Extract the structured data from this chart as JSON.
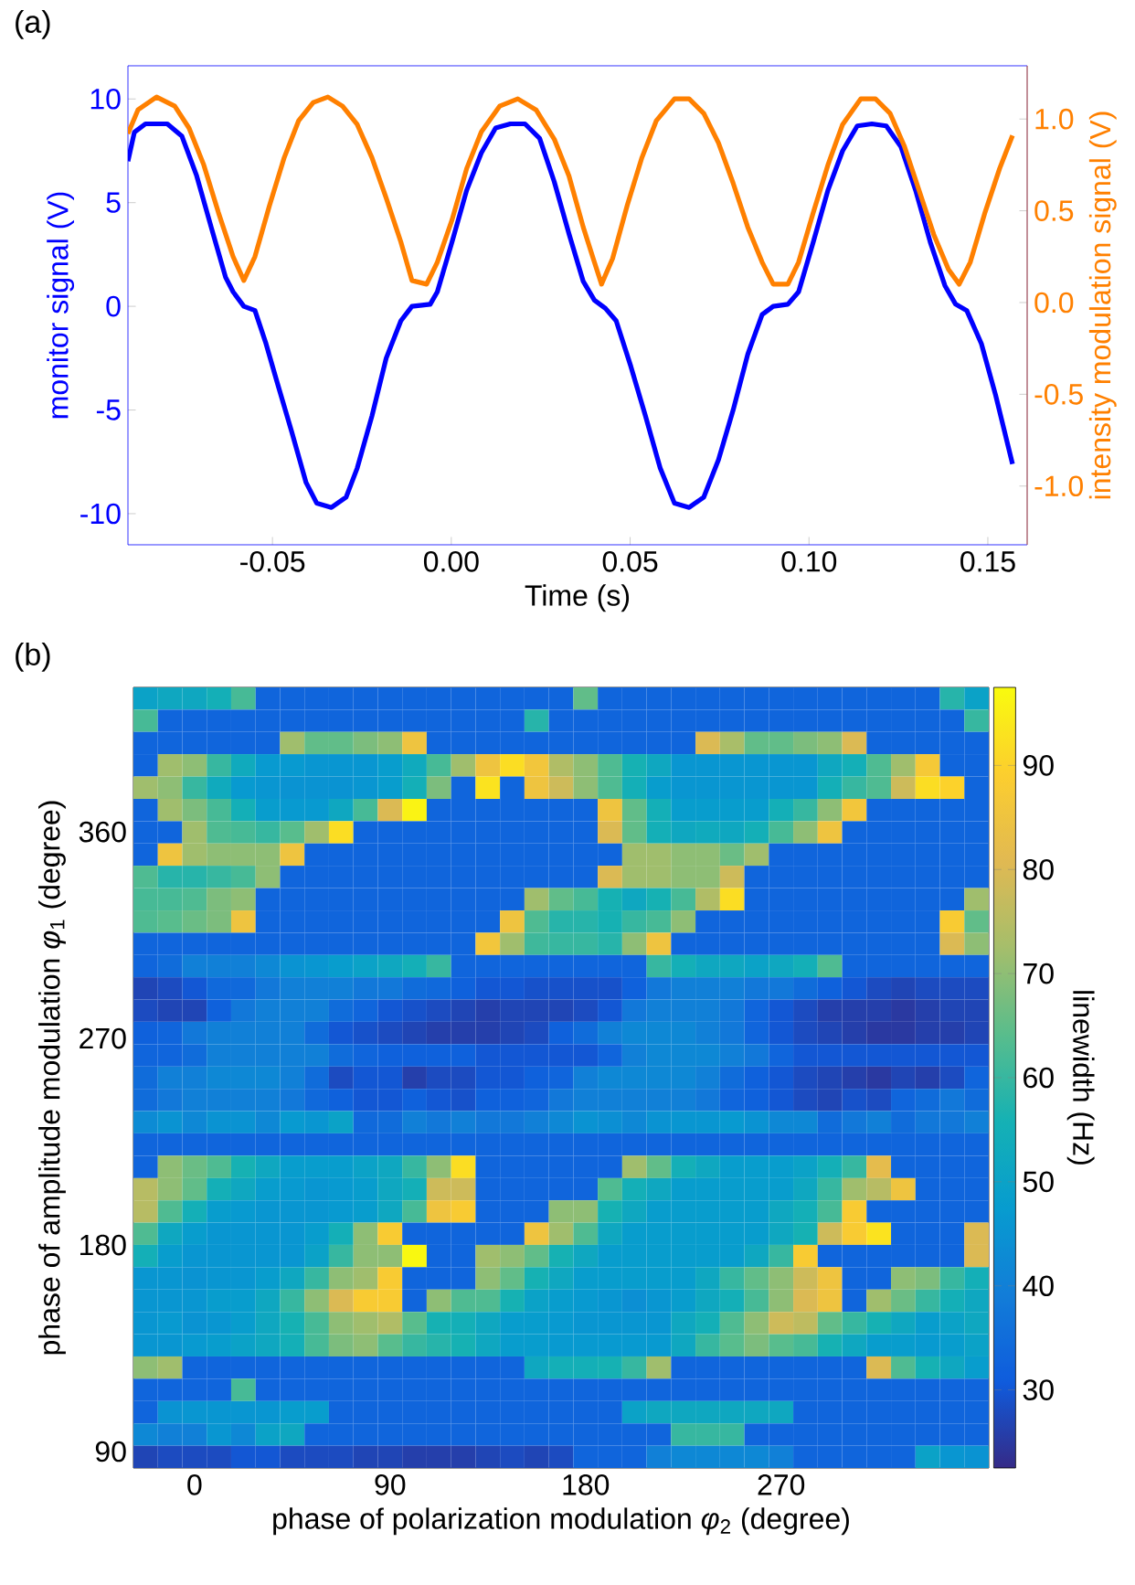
{
  "chart_data": [
    {
      "type": "line",
      "xlabel": "Time (s)",
      "ylabel": "monitor signal (V)",
      "y2label": "intensity modulation signal (V)",
      "annotations": [
        "(a)"
      ],
      "line_style": "solid",
      "xlim": [
        -0.0904,
        0.161
      ],
      "xticks": [
        -0.05,
        {
          "value": 0,
          "label": "0.00"
        },
        0.05,
        {
          "value": 0.1,
          "label": "0.10"
        },
        0.15
      ],
      "ylim": [
        -11.5,
        11.6
      ],
      "yticks": [
        -10,
        -5,
        0,
        5,
        10
      ],
      "y2lim": [
        -1.32,
        1.29
      ],
      "y2ticks": [
        {
          "value": -1,
          "label": "-1.0"
        },
        {
          "value": -0.5,
          "label": "-0.5"
        },
        {
          "value": 0,
          "label": "0.0"
        },
        {
          "value": 0.5,
          "label": "0.5"
        },
        {
          "value": 1,
          "label": "1.0"
        }
      ],
      "series": [
        {
          "color": "#0000ff",
          "x": [
            -0.0904,
            -0.0886,
            -0.0855,
            -0.0794,
            -0.0753,
            -0.0712,
            -0.0671,
            -0.0631,
            -0.061,
            -0.058,
            -0.0549,
            -0.0518,
            -0.0488,
            -0.0447,
            -0.0406,
            -0.0376,
            -0.0335,
            -0.0294,
            -0.0263,
            -0.0222,
            -0.0182,
            -0.0141,
            -0.011,
            -0.0059,
            -0.0039,
            0.0002,
            0.0043,
            0.0084,
            0.0124,
            0.0165,
            0.0206,
            0.0247,
            0.0288,
            0.0329,
            0.0369,
            0.04,
            0.0431,
            0.0461,
            0.0502,
            0.0543,
            0.0584,
            0.0624,
            0.0665,
            0.0706,
            0.0747,
            0.0788,
            0.0829,
            0.0869,
            0.09,
            0.0941,
            0.0971,
            0.1012,
            0.1053,
            0.1094,
            0.1135,
            0.1176,
            0.1216,
            0.1257,
            0.1298,
            0.1339,
            0.138,
            0.141,
            0.1441,
            0.1482,
            0.1522,
            0.1569
          ],
          "values": [
            7.0,
            8.4,
            8.8,
            8.8,
            8.2,
            6.3,
            3.8,
            1.4,
            0.7,
            0.0,
            -0.2,
            -1.8,
            -3.6,
            -6.0,
            -8.5,
            -9.5,
            -9.7,
            -9.2,
            -7.8,
            -5.3,
            -2.5,
            -0.7,
            0.0,
            0.1,
            0.7,
            3.1,
            5.6,
            7.4,
            8.6,
            8.8,
            8.8,
            8.1,
            6.0,
            3.5,
            1.2,
            0.3,
            -0.1,
            -0.7,
            -2.9,
            -5.3,
            -7.8,
            -9.5,
            -9.7,
            -9.2,
            -7.4,
            -5.0,
            -2.3,
            -0.4,
            0.0,
            0.1,
            0.7,
            3.1,
            5.6,
            7.5,
            8.7,
            8.8,
            8.7,
            7.7,
            5.6,
            3.1,
            1.0,
            0.1,
            -0.2,
            -1.8,
            -4.3,
            -7.6
          ]
        },
        {
          "color": "#ff8000",
          "axis": "y2",
          "x": [
            -0.0904,
            -0.0876,
            -0.0824,
            -0.0773,
            -0.0733,
            -0.0692,
            -0.0651,
            -0.061,
            -0.058,
            -0.0549,
            -0.0508,
            -0.0467,
            -0.0427,
            -0.0386,
            -0.0345,
            -0.0304,
            -0.0263,
            -0.0222,
            -0.0182,
            -0.0141,
            -0.011,
            -0.0069,
            -0.0039,
            0.0002,
            0.0043,
            0.0084,
            0.0135,
            0.0186,
            0.0237,
            0.0288,
            0.0329,
            0.0369,
            0.04,
            0.042,
            0.0451,
            0.0492,
            0.0533,
            0.0573,
            0.0624,
            0.0665,
            0.0706,
            0.0747,
            0.0788,
            0.0829,
            0.0869,
            0.09,
            0.0941,
            0.0971,
            0.1012,
            0.1053,
            0.1094,
            0.1145,
            0.1186,
            0.1227,
            0.1267,
            0.1308,
            0.1349,
            0.139,
            0.142,
            0.1451,
            0.1492,
            0.1533,
            0.1569
          ],
          "values": [
            0.92,
            1.05,
            1.12,
            1.07,
            0.95,
            0.75,
            0.49,
            0.25,
            0.12,
            0.25,
            0.53,
            0.79,
            0.99,
            1.09,
            1.12,
            1.07,
            0.97,
            0.79,
            0.57,
            0.33,
            0.12,
            0.1,
            0.22,
            0.45,
            0.73,
            0.93,
            1.07,
            1.11,
            1.05,
            0.89,
            0.69,
            0.41,
            0.22,
            0.1,
            0.24,
            0.53,
            0.79,
            0.99,
            1.11,
            1.11,
            1.03,
            0.87,
            0.65,
            0.41,
            0.22,
            0.1,
            0.1,
            0.22,
            0.49,
            0.75,
            0.97,
            1.11,
            1.11,
            1.03,
            0.85,
            0.61,
            0.37,
            0.18,
            0.1,
            0.22,
            0.49,
            0.73,
            0.91
          ]
        }
      ]
    },
    {
      "type": "heatmap",
      "xlabel": "phase of polarization modulation *φ*$_{2}$ (degree)",
      "ylabel": "phase of amplitude modulation *φ*$_{1}$ (degree)",
      "clabel": "linewidth (Hz)",
      "annotations": [
        "(b)"
      ],
      "x": [
        -22.5,
        -11.25,
        0,
        11.25,
        22.5,
        33.75,
        45,
        56.25,
        67.5,
        78.75,
        90,
        101.25,
        112.5,
        123.75,
        135,
        146.25,
        157.5,
        168.75,
        180,
        191.25,
        202.5,
        213.75,
        225,
        236.25,
        247.5,
        258.75,
        270,
        281.25,
        292.5,
        303.75,
        315,
        326.25,
        337.5,
        348.75,
        360
      ],
      "y": [
        418.1,
        408.4,
        398.7,
        389.0,
        379.2,
        369.5,
        359.8,
        350.1,
        340.4,
        330.6,
        320.9,
        311.2,
        301.5,
        291.8,
        282.1,
        272.4,
        262.6,
        252.9,
        243.2,
        233.5,
        223.8,
        214.0,
        204.3,
        194.6,
        184.9,
        175.2,
        165.5,
        155.7,
        146.0,
        136.3,
        126.6,
        116.9,
        107.1,
        97.4,
        87.7
      ],
      "xlim": [
        -28.125,
        365.625
      ],
      "xticks": [
        0,
        90,
        180,
        270
      ],
      "ylim": [
        82.85,
        422.95
      ],
      "yticks": [
        90,
        180,
        270,
        360
      ],
      "clim": [
        22.5,
        97.5
      ],
      "cticks": [
        30,
        40,
        50,
        60,
        70,
        80,
        90
      ],
      "cells": [
        [
          50,
          52,
          52,
          55,
          62,
          33,
          33,
          33,
          33,
          33,
          33,
          33,
          33,
          33,
          33,
          33,
          33,
          33,
          65,
          33,
          33,
          33,
          33,
          33,
          33,
          33,
          33,
          33,
          33,
          33,
          33,
          33,
          33,
          58,
          50
        ],
        [
          62,
          33,
          33,
          33,
          33,
          33,
          33,
          33,
          33,
          33,
          33,
          33,
          33,
          33,
          33,
          33,
          58,
          33,
          33,
          33,
          33,
          33,
          33,
          33,
          33,
          33,
          33,
          33,
          33,
          33,
          33,
          33,
          33,
          33,
          60
        ],
        [
          33,
          33,
          33,
          33,
          33,
          33,
          72,
          65,
          65,
          68,
          70,
          85,
          33,
          33,
          33,
          33,
          33,
          33,
          33,
          33,
          33,
          33,
          33,
          80,
          73,
          65,
          65,
          68,
          70,
          80,
          33,
          33,
          33,
          33,
          33
        ],
        [
          33,
          72,
          70,
          60,
          53,
          47,
          47,
          46,
          46,
          46,
          48,
          53,
          62,
          72,
          85,
          92,
          86,
          74,
          70,
          63,
          56,
          52,
          46,
          46,
          46,
          46,
          46,
          46,
          52,
          55,
          63,
          72,
          87,
          33,
          33
        ],
        [
          72,
          70,
          60,
          53,
          47,
          46,
          45,
          45,
          45,
          46,
          48,
          55,
          68,
          33,
          93,
          33,
          85,
          78,
          70,
          63,
          55,
          48,
          46,
          46,
          46,
          46,
          46,
          46,
          55,
          60,
          63,
          78,
          92,
          90,
          33
        ],
        [
          33,
          72,
          68,
          62,
          55,
          48,
          47,
          47,
          52,
          62,
          80,
          96,
          33,
          33,
          33,
          33,
          33,
          33,
          33,
          85,
          65,
          55,
          48,
          48,
          48,
          48,
          55,
          60,
          70,
          86,
          33,
          33,
          33,
          33,
          33
        ],
        [
          33,
          33,
          72,
          63,
          62,
          60,
          64,
          72,
          92,
          33,
          33,
          33,
          33,
          33,
          33,
          33,
          33,
          33,
          33,
          80,
          65,
          55,
          52,
          53,
          52,
          55,
          62,
          70,
          85,
          33,
          33,
          33,
          33,
          33,
          33
        ],
        [
          33,
          85,
          72,
          70,
          70,
          70,
          85,
          33,
          33,
          33,
          33,
          33,
          33,
          33,
          33,
          33,
          33,
          33,
          33,
          33,
          72,
          72,
          70,
          70,
          66,
          72,
          33,
          33,
          33,
          33,
          33,
          33,
          33,
          33,
          33
        ],
        [
          63,
          58,
          58,
          60,
          62,
          70,
          33,
          33,
          33,
          33,
          33,
          33,
          33,
          33,
          33,
          33,
          33,
          33,
          33,
          80,
          72,
          72,
          70,
          70,
          78,
          33,
          33,
          33,
          33,
          33,
          33,
          33,
          33,
          33,
          33
        ],
        [
          62,
          62,
          63,
          68,
          70,
          33,
          33,
          33,
          33,
          33,
          33,
          33,
          33,
          33,
          33,
          33,
          72,
          65,
          62,
          56,
          52,
          56,
          62,
          74,
          92,
          33,
          33,
          33,
          33,
          33,
          33,
          33,
          33,
          33,
          72
        ],
        [
          63,
          64,
          66,
          68,
          85,
          33,
          33,
          33,
          33,
          33,
          33,
          33,
          33,
          33,
          33,
          85,
          63,
          58,
          58,
          56,
          60,
          62,
          70,
          33,
          33,
          33,
          33,
          33,
          33,
          33,
          33,
          33,
          33,
          88,
          65
        ],
        [
          33,
          33,
          33,
          33,
          33,
          33,
          33,
          33,
          33,
          33,
          33,
          33,
          33,
          33,
          86,
          72,
          61,
          60,
          60,
          58,
          70,
          85,
          33,
          33,
          33,
          33,
          33,
          33,
          33,
          33,
          33,
          33,
          33,
          80,
          70
        ],
        [
          33,
          35,
          40,
          40,
          40,
          42,
          45,
          46,
          48,
          50,
          52,
          55,
          60,
          33,
          33,
          33,
          33,
          33,
          33,
          33,
          33,
          60,
          55,
          52,
          52,
          50,
          52,
          55,
          63,
          33,
          33,
          33,
          33,
          33,
          33
        ],
        [
          27,
          28,
          30,
          34,
          34,
          38,
          40,
          40,
          40,
          38,
          38,
          35,
          34,
          32,
          30,
          30,
          29,
          29,
          29,
          29,
          32,
          38,
          40,
          40,
          40,
          38,
          38,
          35,
          32,
          30,
          28,
          27,
          28,
          28,
          28
        ],
        [
          28,
          27,
          27,
          32,
          38,
          40,
          40,
          40,
          35,
          33,
          30,
          29,
          28,
          27,
          26,
          27,
          27,
          27,
          28,
          30,
          38,
          40,
          40,
          40,
          38,
          33,
          30,
          28,
          26,
          26,
          26,
          25,
          26,
          27,
          27
        ],
        [
          32,
          33,
          38,
          40,
          40,
          40,
          40,
          35,
          30,
          29,
          28,
          27,
          26,
          26,
          26,
          27,
          28,
          32,
          35,
          40,
          42,
          42,
          42,
          40,
          38,
          33,
          30,
          28,
          27,
          26,
          25,
          25,
          26,
          26,
          27
        ],
        [
          33,
          33,
          35,
          40,
          40,
          40,
          40,
          40,
          35,
          33,
          32,
          32,
          32,
          32,
          30,
          30,
          30,
          30,
          30,
          33,
          40,
          42,
          42,
          42,
          40,
          38,
          33,
          30,
          30,
          30,
          30,
          30,
          30,
          30,
          30
        ],
        [
          35,
          40,
          40,
          42,
          42,
          42,
          40,
          35,
          28,
          30,
          30,
          26,
          28,
          28,
          30,
          30,
          32,
          33,
          40,
          42,
          42,
          42,
          42,
          40,
          35,
          32,
          30,
          28,
          27,
          26,
          25,
          27,
          26,
          28,
          33
        ],
        [
          35,
          38,
          40,
          40,
          40,
          40,
          38,
          34,
          32,
          30,
          30,
          32,
          30,
          29,
          32,
          32,
          33,
          38,
          40,
          40,
          40,
          40,
          40,
          38,
          33,
          32,
          30,
          28,
          27,
          29,
          28,
          33,
          35,
          38,
          35
        ],
        [
          43,
          45,
          42,
          45,
          45,
          42,
          47,
          46,
          50,
          34,
          35,
          40,
          38,
          40,
          38,
          38,
          40,
          42,
          45,
          44,
          42,
          45,
          46,
          46,
          47,
          45,
          42,
          42,
          35,
          38,
          40,
          35,
          38,
          38,
          40
        ],
        [
          33,
          33,
          33,
          33,
          33,
          33,
          33,
          33,
          33,
          33,
          33,
          33,
          33,
          33,
          33,
          33,
          33,
          33,
          33,
          33,
          33,
          33,
          33,
          33,
          33,
          33,
          33,
          33,
          33,
          33,
          33,
          33,
          33,
          33,
          33
        ],
        [
          33,
          70,
          66,
          63,
          56,
          52,
          48,
          48,
          48,
          50,
          52,
          60,
          70,
          92,
          33,
          33,
          33,
          33,
          33,
          33,
          72,
          65,
          55,
          52,
          48,
          48,
          48,
          50,
          55,
          60,
          82,
          33,
          33,
          33,
          33
        ],
        [
          75,
          70,
          65,
          55,
          52,
          48,
          47,
          46,
          47,
          48,
          52,
          55,
          78,
          78,
          33,
          33,
          33,
          33,
          33,
          63,
          55,
          52,
          48,
          48,
          48,
          48,
          48,
          52,
          60,
          72,
          75,
          85,
          33,
          33,
          33
        ],
        [
          75,
          63,
          55,
          48,
          47,
          46,
          46,
          46,
          47,
          48,
          52,
          62,
          85,
          88,
          33,
          33,
          33,
          70,
          70,
          56,
          52,
          48,
          48,
          48,
          48,
          48,
          52,
          55,
          62,
          88,
          33,
          33,
          33,
          33,
          33
        ],
        [
          63,
          52,
          48,
          46,
          46,
          46,
          46,
          48,
          55,
          70,
          88,
          33,
          33,
          33,
          33,
          33,
          85,
          72,
          63,
          52,
          48,
          48,
          48,
          48,
          48,
          48,
          52,
          56,
          78,
          88,
          93,
          33,
          33,
          33,
          80
        ],
        [
          55,
          48,
          46,
          46,
          46,
          46,
          46,
          50,
          60,
          70,
          70,
          97,
          33,
          33,
          72,
          70,
          65,
          56,
          52,
          48,
          48,
          48,
          48,
          48,
          48,
          52,
          60,
          88,
          33,
          33,
          33,
          33,
          33,
          33,
          80
        ],
        [
          46,
          46,
          45,
          46,
          46,
          48,
          52,
          60,
          70,
          72,
          88,
          33,
          33,
          33,
          70,
          65,
          56,
          52,
          48,
          48,
          48,
          48,
          48,
          52,
          60,
          65,
          70,
          78,
          85,
          33,
          33,
          70,
          68,
          60,
          55
        ],
        [
          46,
          46,
          46,
          48,
          48,
          52,
          60,
          70,
          80,
          88,
          88,
          33,
          70,
          63,
          63,
          56,
          50,
          48,
          47,
          46,
          44,
          46,
          48,
          52,
          55,
          62,
          70,
          80,
          85,
          33,
          72,
          66,
          60,
          55,
          52
        ],
        [
          46,
          47,
          45,
          46,
          48,
          52,
          56,
          62,
          70,
          72,
          74,
          64,
          56,
          55,
          52,
          48,
          48,
          47,
          46,
          46,
          46,
          46,
          52,
          55,
          63,
          70,
          78,
          76,
          65,
          60,
          56,
          52,
          48,
          50,
          52
        ],
        [
          46,
          46,
          47,
          48,
          50,
          52,
          55,
          62,
          68,
          70,
          64,
          60,
          58,
          56,
          52,
          48,
          48,
          47,
          47,
          47,
          47,
          47,
          52,
          60,
          64,
          68,
          64,
          62,
          56,
          52,
          48,
          48,
          47,
          48,
          50
        ],
        [
          70,
          72,
          33,
          33,
          33,
          33,
          33,
          33,
          33,
          33,
          33,
          33,
          33,
          33,
          33,
          33,
          52,
          55,
          55,
          56,
          60,
          72,
          33,
          33,
          33,
          33,
          33,
          33,
          33,
          33,
          80,
          63,
          56,
          52,
          48
        ],
        [
          33,
          33,
          33,
          33,
          62,
          33,
          33,
          33,
          33,
          33,
          33,
          33,
          33,
          33,
          33,
          33,
          33,
          33,
          33,
          33,
          33,
          33,
          33,
          33,
          33,
          33,
          33,
          33,
          33,
          33,
          33,
          33,
          33,
          33,
          33
        ],
        [
          33,
          45,
          46,
          46,
          46,
          46,
          48,
          48,
          33,
          33,
          33,
          33,
          33,
          33,
          33,
          33,
          33,
          33,
          33,
          33,
          50,
          52,
          52,
          52,
          52,
          52,
          52,
          33,
          33,
          33,
          33,
          33,
          33,
          33,
          33
        ],
        [
          42,
          40,
          40,
          46,
          42,
          50,
          52,
          33,
          33,
          33,
          33,
          33,
          33,
          33,
          33,
          33,
          33,
          33,
          33,
          33,
          33,
          33,
          60,
          60,
          60,
          33,
          33,
          33,
          33,
          33,
          33,
          33,
          33,
          33,
          33
        ],
        [
          27,
          28,
          28,
          28,
          30,
          30,
          28,
          28,
          28,
          27,
          27,
          26,
          26,
          26,
          27,
          28,
          27,
          28,
          33,
          33,
          33,
          40,
          42,
          42,
          42,
          42,
          40,
          33,
          33,
          33,
          33,
          33,
          50,
          46,
          45
        ]
      ]
    }
  ]
}
